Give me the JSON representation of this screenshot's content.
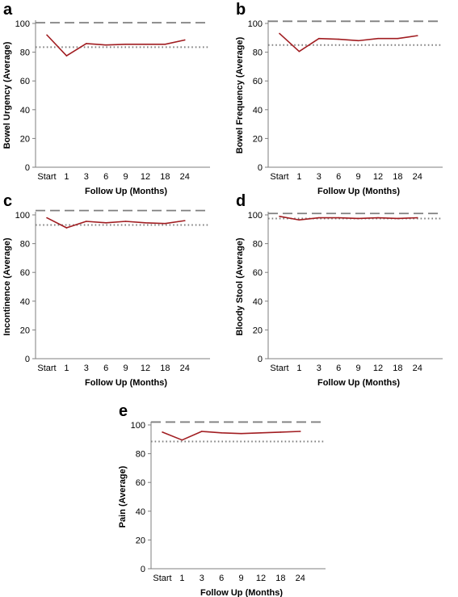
{
  "chart_data": [
    {
      "panel": "a",
      "type": "line",
      "categories": [
        "Start",
        "1",
        "3",
        "6",
        "9",
        "12",
        "18",
        "24"
      ],
      "series": [
        {
          "values": [
            92,
            77.5,
            86,
            85,
            85.5,
            85.5,
            85.5,
            88.5
          ],
          "color": "#a11d21",
          "style": "solid"
        }
      ],
      "reference_lines": [
        {
          "value": 100.5,
          "style": "dashed",
          "color": "#7f7f7f"
        },
        {
          "value": 83.5,
          "style": "dotted",
          "color": "#7f7f7f"
        }
      ],
      "xlabel": "Follow Up (Months)",
      "ylabel": "Bowel Urgency (Average)",
      "ylim": [
        0,
        100
      ],
      "yticks": [
        0,
        20,
        40,
        60,
        80,
        100
      ],
      "grid": false
    },
    {
      "panel": "b",
      "type": "line",
      "categories": [
        "Start",
        "1",
        "3",
        "6",
        "9",
        "12",
        "18",
        "24"
      ],
      "series": [
        {
          "values": [
            93,
            80.5,
            89.5,
            89,
            88,
            89.5,
            89.5,
            91.5
          ],
          "color": "#a11d21",
          "style": "solid"
        }
      ],
      "reference_lines": [
        {
          "value": 101.5,
          "style": "dashed",
          "color": "#7f7f7f"
        },
        {
          "value": 85,
          "style": "dotted",
          "color": "#7f7f7f"
        }
      ],
      "xlabel": "Follow Up (Months)",
      "ylabel": "Bowel Frequency (Average)",
      "ylim": [
        0,
        100
      ],
      "yticks": [
        0,
        20,
        40,
        60,
        80,
        100
      ],
      "grid": false
    },
    {
      "panel": "c",
      "type": "line",
      "categories": [
        "Start",
        "1",
        "3",
        "6",
        "9",
        "12",
        "18",
        "24"
      ],
      "series": [
        {
          "values": [
            98,
            91,
            95.5,
            94.5,
            95.5,
            94.5,
            94,
            96
          ],
          "color": "#a11d21",
          "style": "solid"
        }
      ],
      "reference_lines": [
        {
          "value": 103,
          "style": "dashed",
          "color": "#7f7f7f"
        },
        {
          "value": 93,
          "style": "dotted",
          "color": "#7f7f7f"
        }
      ],
      "xlabel": "Follow Up (Months)",
      "ylabel": "Incontinence (Average)",
      "ylim": [
        0,
        100
      ],
      "yticks": [
        0,
        20,
        40,
        60,
        80,
        100
      ],
      "grid": false
    },
    {
      "panel": "d",
      "type": "line",
      "categories": [
        "Start",
        "1",
        "3",
        "6",
        "9",
        "12",
        "18",
        "24"
      ],
      "series": [
        {
          "values": [
            99,
            96.5,
            98,
            98,
            97.5,
            98,
            97.5,
            98
          ],
          "color": "#a11d21",
          "style": "solid"
        }
      ],
      "reference_lines": [
        {
          "value": 101,
          "style": "dashed",
          "color": "#7f7f7f"
        },
        {
          "value": 97.5,
          "style": "dotted",
          "color": "#7f7f7f"
        }
      ],
      "xlabel": "Follow Up (Months)",
      "ylabel": "Bloody Stool (Average)",
      "ylim": [
        0,
        100
      ],
      "yticks": [
        0,
        20,
        40,
        60,
        80,
        100
      ],
      "grid": false
    },
    {
      "panel": "e",
      "type": "line",
      "categories": [
        "Start",
        "1",
        "3",
        "6",
        "9",
        "12",
        "18",
        "24"
      ],
      "series": [
        {
          "values": [
            95,
            89.5,
            95.5,
            94.5,
            94,
            94.5,
            95,
            95.5
          ],
          "color": "#a11d21",
          "style": "solid"
        }
      ],
      "reference_lines": [
        {
          "value": 102,
          "style": "dashed",
          "color": "#7f7f7f"
        },
        {
          "value": 88.5,
          "style": "dotted",
          "color": "#7f7f7f"
        }
      ],
      "xlabel": "Follow Up (Months)",
      "ylabel": "Pain (Average)",
      "ylim": [
        0,
        100
      ],
      "yticks": [
        0,
        20,
        40,
        60,
        80,
        100
      ],
      "grid": false
    }
  ]
}
